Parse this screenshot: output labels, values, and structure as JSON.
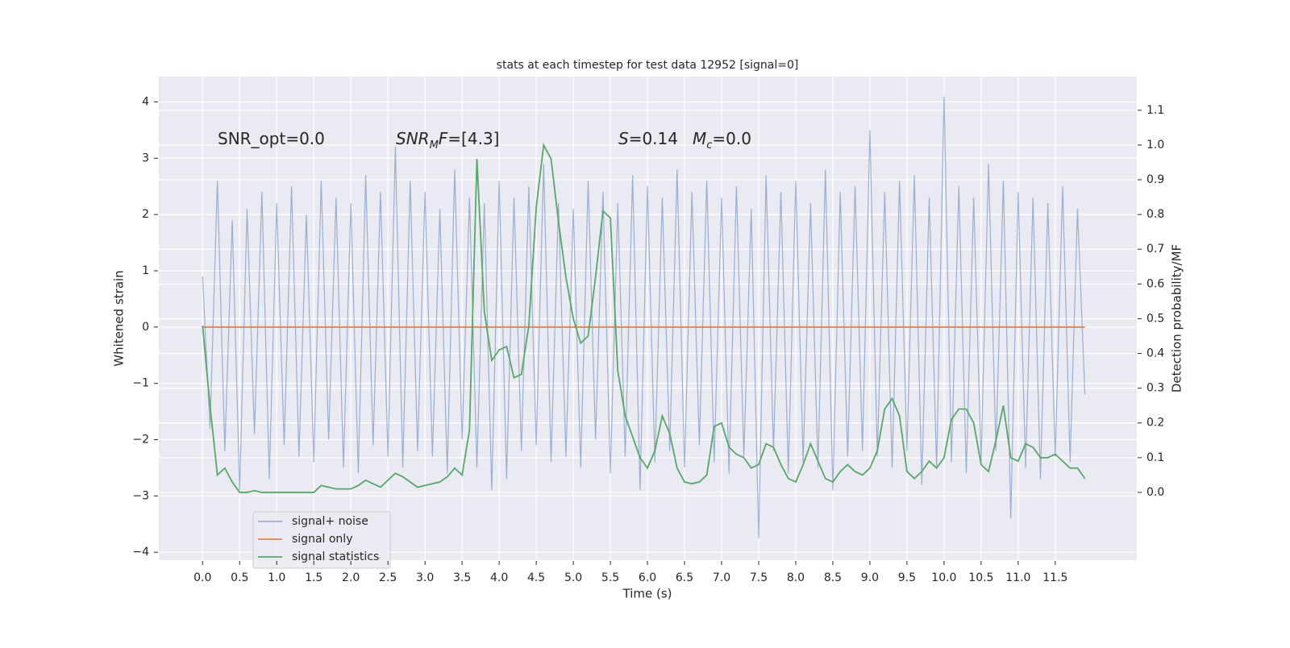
{
  "chart_data": {
    "type": "line",
    "title": "stats at each timestep for test data 12952 [signal=0]",
    "xlabel": "Time (s)",
    "ylabel": "Whitened strain",
    "y2label": "Detection probability/MF",
    "background": "#eaeaf2",
    "grid": true,
    "legend": "lower left",
    "xlim": [
      -0.59,
      12.6
    ],
    "ylim": [
      -4.14,
      4.45
    ],
    "y2lim": [
      -0.195,
      1.197
    ],
    "xticks": [
      {
        "value": 0,
        "label": "0.0"
      },
      0.5,
      {
        "value": 1,
        "label": "1.0"
      },
      1.5,
      {
        "value": 2,
        "label": "2.0"
      },
      2.5,
      {
        "value": 3,
        "label": "3.0"
      },
      3.5,
      {
        "value": 4,
        "label": "4.0"
      },
      4.5,
      {
        "value": 5,
        "label": "5.0"
      },
      5.5,
      {
        "value": 6,
        "label": "6.0"
      },
      6.5,
      {
        "value": 7,
        "label": "7.0"
      },
      7.5,
      {
        "value": 8,
        "label": "8.0"
      },
      8.5,
      {
        "value": 9,
        "label": "9.0"
      },
      9.5,
      {
        "value": 10,
        "label": "10.0"
      },
      10.5,
      {
        "value": 11,
        "label": "11.0"
      },
      11.5
    ],
    "yticks": [
      {
        "value": -4,
        "label": "−4"
      },
      {
        "value": -3,
        "label": "−3"
      },
      {
        "value": -2,
        "label": "−2"
      },
      {
        "value": -1,
        "label": "−1"
      },
      0,
      1,
      2,
      3,
      4
    ],
    "y2ticks": [
      {
        "value": 0,
        "label": "0.0"
      },
      0.1,
      0.2,
      0.3,
      0.4,
      0.5,
      0.6,
      0.7,
      0.8,
      0.9,
      {
        "value": 1,
        "label": "1.0"
      },
      1.1
    ],
    "annotations": [
      {
        "parts": [
          {
            "text": "SNR_opt=0.0"
          }
        ]
      },
      {
        "parts": [
          {
            "text": "SNR",
            "style": "italic"
          },
          {
            "text": "M",
            "style": "sub"
          },
          {
            "text": "F",
            "style": "italic"
          },
          {
            "text": "=[4.3]"
          }
        ]
      },
      {
        "parts": [
          {
            "text": "S",
            "style": "italic"
          },
          {
            "text": "=0.14"
          }
        ]
      },
      {
        "parts": [
          {
            "text": "M",
            "style": "italic"
          },
          {
            "text": "c",
            "style": "sub"
          },
          {
            "text": "=0.0"
          }
        ]
      }
    ],
    "x": [
      0,
      0.1,
      0.2,
      0.3,
      0.4,
      0.5,
      0.6,
      0.7,
      0.8,
      0.9,
      1,
      1.1,
      1.2,
      1.3,
      1.4,
      1.5,
      1.6,
      1.7,
      1.8,
      1.9,
      2,
      2.1,
      2.2,
      2.3,
      2.4,
      2.5,
      2.6,
      2.7,
      2.8,
      2.9,
      3,
      3.1,
      3.2,
      3.3,
      3.4,
      3.5,
      3.6,
      3.7,
      3.8,
      3.9,
      4,
      4.1,
      4.2,
      4.3,
      4.4,
      4.5,
      4.6,
      4.7,
      4.8,
      4.9,
      5,
      5.1,
      5.2,
      5.3,
      5.4,
      5.5,
      5.6,
      5.7,
      5.8,
      5.9,
      6,
      6.1,
      6.2,
      6.3,
      6.4,
      6.5,
      6.6,
      6.7,
      6.8,
      6.9,
      7,
      7.1,
      7.2,
      7.3,
      7.4,
      7.5,
      7.6,
      7.7,
      7.8,
      7.9,
      8,
      8.1,
      8.2,
      8.3,
      8.4,
      8.5,
      8.6,
      8.7,
      8.8,
      8.9,
      9,
      9.1,
      9.2,
      9.3,
      9.4,
      9.5,
      9.6,
      9.7,
      9.8,
      9.9,
      10,
      10.1,
      10.2,
      10.3,
      10.4,
      10.5,
      10.6,
      10.7,
      10.8,
      10.9,
      11,
      11.1,
      11.2,
      11.3,
      11.4,
      11.5,
      11.6,
      11.7,
      11.8,
      11.9
    ],
    "series": [
      {
        "name": "signal+ noise",
        "color": "#4c72b0",
        "alpha": 0.5,
        "values": [
          0.9,
          -1.8,
          2.6,
          -2.2,
          1.9,
          -2.9,
          2.1,
          -1.9,
          2.4,
          -2.7,
          2.2,
          -2.1,
          2.5,
          -2.3,
          2.0,
          -2.4,
          2.6,
          -2.0,
          2.3,
          -2.5,
          2.2,
          -2.6,
          2.7,
          -2.1,
          2.4,
          -2.3,
          3.2,
          -2.5,
          2.6,
          -2.2,
          2.4,
          -2.3,
          2.1,
          -2.6,
          2.8,
          -2.0,
          2.3,
          -2.5,
          2.2,
          -2.9,
          2.6,
          -2.7,
          2.3,
          -2.2,
          2.5,
          -2.1,
          2.9,
          -2.4,
          2.2,
          -2.3,
          2.1,
          -2.5,
          2.6,
          -2.0,
          2.4,
          -2.6,
          2.2,
          -2.3,
          2.7,
          -2.9,
          2.5,
          -2.4,
          2.3,
          -2.2,
          2.8,
          -2.5,
          2.4,
          -2.1,
          2.6,
          -2.4,
          2.3,
          -2.6,
          2.5,
          -2.3,
          2.1,
          -3.75,
          2.7,
          -2.2,
          2.4,
          -2.6,
          2.6,
          -2.4,
          2.2,
          -2.5,
          2.8,
          -2.9,
          2.4,
          -2.3,
          2.5,
          -2.2,
          3.5,
          -2.3,
          2.4,
          -2.5,
          2.6,
          -2.2,
          2.7,
          -2.8,
          2.3,
          -2.5,
          4.1,
          -2.4,
          2.5,
          -2.6,
          2.3,
          -2.4,
          2.9,
          -2.2,
          2.6,
          -3.4,
          2.4,
          -2.5,
          2.3,
          -2.7,
          2.2,
          -2.3,
          2.5,
          -2.4,
          2.1,
          -1.2
        ]
      },
      {
        "name": "signal only",
        "color": "#dd8452",
        "alpha": 1,
        "values": [
          0,
          0,
          0,
          0,
          0,
          0,
          0,
          0,
          0,
          0,
          0,
          0,
          0,
          0,
          0,
          0,
          0,
          0,
          0,
          0,
          0,
          0,
          0,
          0,
          0,
          0,
          0,
          0,
          0,
          0,
          0,
          0,
          0,
          0,
          0,
          0,
          0,
          0,
          0,
          0,
          0,
          0,
          0,
          0,
          0,
          0,
          0,
          0,
          0,
          0,
          0,
          0,
          0,
          0,
          0,
          0,
          0,
          0,
          0,
          0,
          0,
          0,
          0,
          0,
          0,
          0,
          0,
          0,
          0,
          0,
          0,
          0,
          0,
          0,
          0,
          0,
          0,
          0,
          0,
          0,
          0,
          0,
          0,
          0,
          0,
          0,
          0,
          0,
          0,
          0,
          0,
          0,
          0,
          0,
          0,
          0,
          0,
          0,
          0,
          0,
          0,
          0,
          0,
          0,
          0,
          0,
          0,
          0,
          0,
          0,
          0,
          0,
          0,
          0,
          0,
          0,
          0,
          0,
          0,
          0
        ]
      },
      {
        "name": "signal statistics",
        "color": "#55a868",
        "alpha": 1,
        "axis": "y2",
        "values": [
          0.48,
          0.25,
          0.05,
          0.07,
          0.03,
          0.0,
          0.0,
          0.005,
          0.0,
          0.0,
          0.0,
          0.0,
          0.0,
          0.0,
          0.0,
          0.0,
          0.02,
          0.015,
          0.01,
          0.01,
          0.01,
          0.02,
          0.035,
          0.025,
          0.015,
          0.035,
          0.055,
          0.045,
          0.03,
          0.015,
          0.02,
          0.025,
          0.03,
          0.045,
          0.07,
          0.05,
          0.18,
          0.96,
          0.52,
          0.38,
          0.41,
          0.42,
          0.33,
          0.34,
          0.48,
          0.82,
          1.0,
          0.96,
          0.78,
          0.62,
          0.5,
          0.43,
          0.45,
          0.62,
          0.81,
          0.79,
          0.35,
          0.22,
          0.16,
          0.1,
          0.07,
          0.12,
          0.22,
          0.17,
          0.07,
          0.03,
          0.025,
          0.03,
          0.05,
          0.19,
          0.2,
          0.13,
          0.11,
          0.1,
          0.07,
          0.08,
          0.14,
          0.13,
          0.08,
          0.04,
          0.03,
          0.08,
          0.14,
          0.09,
          0.04,
          0.03,
          0.06,
          0.08,
          0.06,
          0.05,
          0.07,
          0.12,
          0.24,
          0.27,
          0.22,
          0.06,
          0.04,
          0.06,
          0.09,
          0.07,
          0.1,
          0.21,
          0.24,
          0.24,
          0.2,
          0.08,
          0.06,
          0.15,
          0.25,
          0.1,
          0.09,
          0.14,
          0.13,
          0.1,
          0.1,
          0.11,
          0.09,
          0.07,
          0.07,
          0.04
        ]
      }
    ]
  }
}
